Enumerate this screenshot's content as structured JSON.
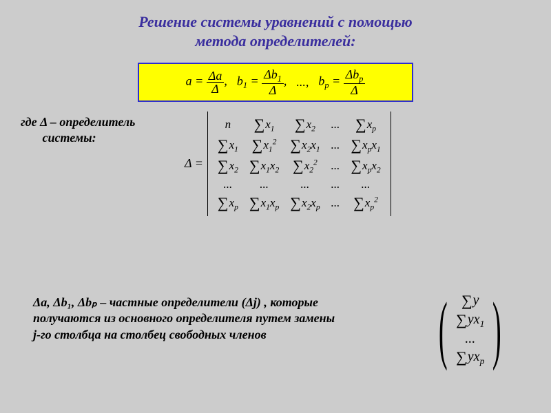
{
  "title": {
    "line1": "Решение системы уравнений с помощью",
    "line2": "метода определителей:",
    "color": "#3a2e9e",
    "fontsize": 22
  },
  "formula_box": {
    "background": "#ffff00",
    "border_color": "#2e2ecf",
    "a_lhs": "a",
    "a_num": "Δa",
    "a_den": "Δ",
    "b1_lhs": "b",
    "b1_sub": "1",
    "b1_num_pre": "Δb",
    "b1_num_sub": "1",
    "b1_den": "Δ",
    "ellipsis": "...,",
    "bp_lhs": "b",
    "bp_sub": "p",
    "bp_num_pre": "Δb",
    "bp_num_sub": "p",
    "bp_den": "Δ",
    "eq": " = ",
    "comma": ","
  },
  "where": {
    "label_line1": "где Δ – определитель",
    "label_line2": "системы:",
    "prefix": "Δ ="
  },
  "matrix": {
    "type": "determinant",
    "rows": 5,
    "cols": 5,
    "cells": [
      [
        {
          "t": "n"
        },
        {
          "s": true,
          "v": "x",
          "sub": "1"
        },
        {
          "s": true,
          "v": "x",
          "sub": "2"
        },
        {
          "t": "..."
        },
        {
          "s": true,
          "v": "x",
          "sub": "p"
        }
      ],
      [
        {
          "s": true,
          "v": "x",
          "sub": "1"
        },
        {
          "s": true,
          "v": "x",
          "sub": "1",
          "sup": "2"
        },
        {
          "s": true,
          "v": "x",
          "sub": "2",
          "v2": "x",
          "sub2": "1"
        },
        {
          "t": "..."
        },
        {
          "s": true,
          "v": "x",
          "sub": "p",
          "v2": "x",
          "sub2": "1"
        }
      ],
      [
        {
          "s": true,
          "v": "x",
          "sub": "2"
        },
        {
          "s": true,
          "v": "x",
          "sub": "1",
          "v2": "x",
          "sub2": "2"
        },
        {
          "s": true,
          "v": "x",
          "sub": "2",
          "sup": "2"
        },
        {
          "t": "..."
        },
        {
          "s": true,
          "v": "x",
          "sub": "p",
          "v2": "x",
          "sub2": "2"
        }
      ],
      [
        {
          "t": "..."
        },
        {
          "t": "..."
        },
        {
          "t": "..."
        },
        {
          "t": "..."
        },
        {
          "t": "..."
        }
      ],
      [
        {
          "s": true,
          "v": "x",
          "sub": "p"
        },
        {
          "s": true,
          "v": "x",
          "sub": "1",
          "v2": "x",
          "sub2": "p"
        },
        {
          "s": true,
          "v": "x",
          "sub": "2",
          "v2": "x",
          "sub2": "p"
        },
        {
          "t": "..."
        },
        {
          "s": true,
          "v": "x",
          "sub": "p",
          "sup": "2"
        }
      ]
    ]
  },
  "note": {
    "text": "Δa, Δb₁, Δbₚ – частные определители (Δj) , которые получаются из основного определителя путем замены j-го столбца на столбец свободных членов"
  },
  "column_vector": {
    "rows": [
      {
        "s": true,
        "v": "y"
      },
      {
        "s": true,
        "v": "y",
        "v2": "x",
        "sub2": "1"
      },
      {
        "t": "..."
      },
      {
        "s": true,
        "v": "y",
        "v2": "x",
        "sub2": "p"
      }
    ]
  },
  "colors": {
    "background": "#cccccc",
    "text": "#000000"
  }
}
